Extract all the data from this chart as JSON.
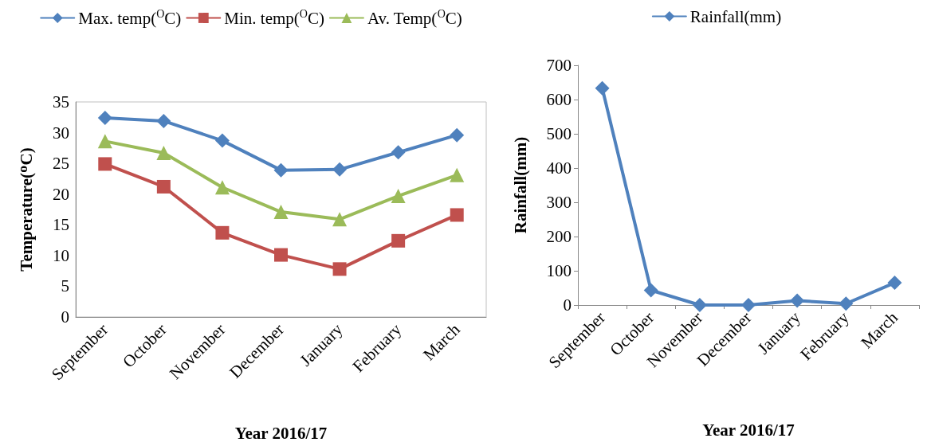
{
  "chart_data": [
    {
      "type": "line",
      "xlabel": "Year 2016/17",
      "ylabel": "Temperature(ᴼC)",
      "categories": [
        "September",
        "October",
        "November",
        "December",
        "January",
        "February",
        "March"
      ],
      "series": [
        {
          "name": "Max. temp($^{O}$C)",
          "color": "#4f81bd",
          "marker": "diamond",
          "values": [
            32.4,
            31.9,
            28.7,
            23.9,
            24.0,
            26.8,
            29.6
          ]
        },
        {
          "name": "Min. temp($^{O}$C)",
          "color": "#c0504d",
          "marker": "square",
          "values": [
            24.9,
            21.2,
            13.7,
            10.1,
            7.8,
            12.4,
            16.6
          ]
        },
        {
          "name": "Av. Temp($^{O}$C)",
          "color": "#9bbb59",
          "marker": "triangle",
          "values": [
            28.6,
            26.7,
            21.1,
            17.1,
            15.9,
            19.7,
            23.1
          ]
        }
      ],
      "ylim": [
        0,
        35
      ],
      "yticks": [
        0,
        5,
        10,
        15,
        20,
        25,
        30,
        35
      ],
      "grid": false,
      "legend": "top"
    },
    {
      "type": "line",
      "xlabel": "Year 2016/17",
      "ylabel": "Rainfall(mm)",
      "categories": [
        "September",
        "October",
        "November",
        "December",
        "January",
        "February",
        "March"
      ],
      "series": [
        {
          "name": "Rainfall(mm)",
          "color": "#4f81bd",
          "marker": "diamond",
          "values": [
            633,
            43,
            0,
            0,
            13,
            4,
            65
          ]
        }
      ],
      "ylim": [
        0,
        700
      ],
      "yticks": [
        0,
        100,
        200,
        300,
        400,
        500,
        600,
        700
      ],
      "grid": false,
      "legend": "top"
    }
  ]
}
